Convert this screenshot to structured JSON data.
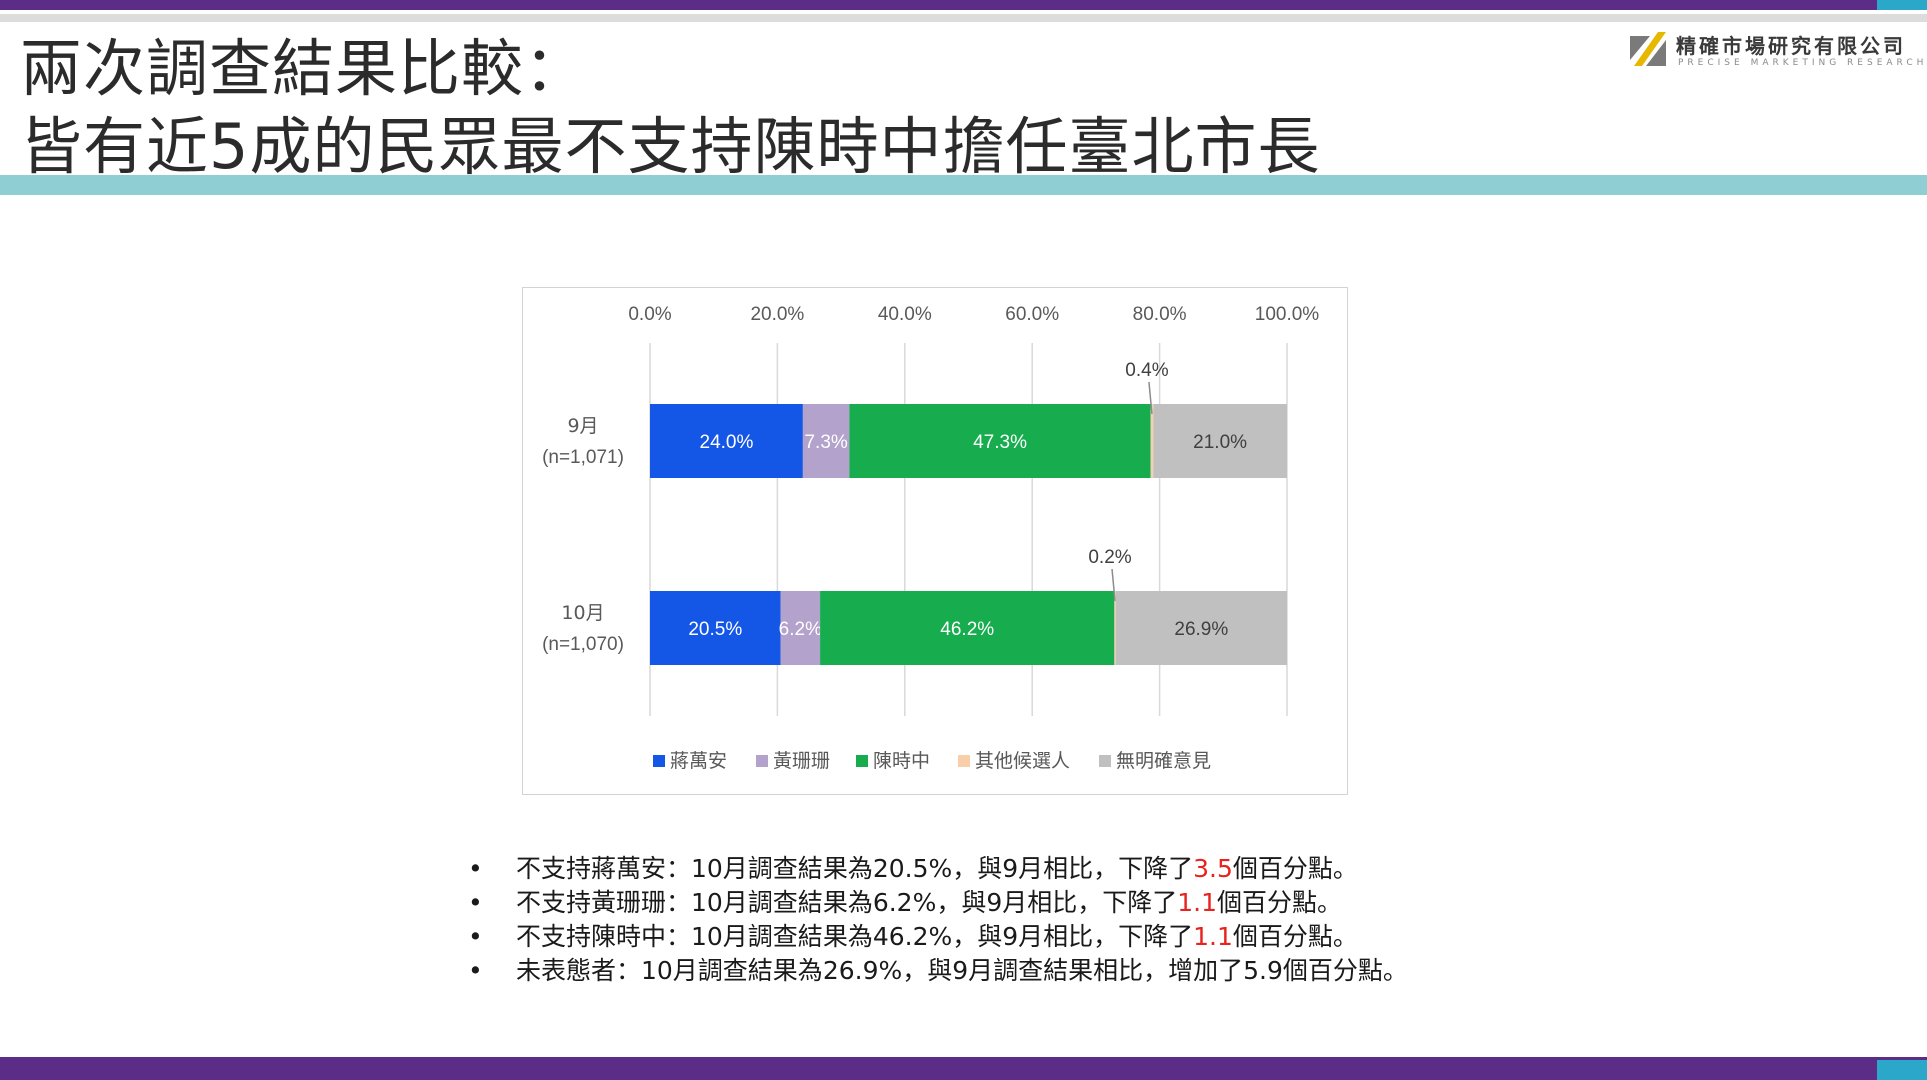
{
  "header": {
    "title_line1": "兩次調查結果比較：",
    "title_line2": "皆有近5成的民眾最不支持陳時中擔任臺北市長",
    "logo_name": "精確市場研究有限公司",
    "logo_sub": "PRECISE MARKETING RESEARCH"
  },
  "chart_data": {
    "type": "bar",
    "orientation": "horizontal",
    "stacked": true,
    "x_ticks": [
      "0.0%",
      "20.0%",
      "40.0%",
      "60.0%",
      "80.0%",
      "100.0%"
    ],
    "xlim": [
      0,
      100
    ],
    "grid": true,
    "legend_position": "bottom",
    "categories": [
      {
        "label_line1": "9月",
        "label_line2": "(n=1,071)"
      },
      {
        "label_line1": "10月",
        "label_line2": "(n=1,070)"
      }
    ],
    "series": [
      {
        "name": "蔣萬安",
        "color": "#1457e6",
        "label_color": "#ffffff",
        "values": [
          24.0,
          20.5
        ],
        "labels": [
          "24.0%",
          "20.5%"
        ]
      },
      {
        "name": "黃珊珊",
        "color": "#b3a2cc",
        "label_color": "#ffffff",
        "values": [
          7.3,
          6.2
        ],
        "labels": [
          "7.3%",
          "6.2%"
        ]
      },
      {
        "name": "陳時中",
        "color": "#17ad4f",
        "label_color": "#ffffff",
        "values": [
          47.3,
          46.2
        ],
        "labels": [
          "47.3%",
          "46.2%"
        ]
      },
      {
        "name": "其他候選人",
        "color": "#f8cfaa",
        "label_color": "#404040",
        "values": [
          0.4,
          0.2
        ],
        "labels": [
          "0.4%",
          "0.2%"
        ]
      },
      {
        "name": "無明確意見",
        "color": "#c0c0c0",
        "label_color": "#404040",
        "values": [
          21.0,
          26.9
        ],
        "labels": [
          "21.0%",
          "26.9%"
        ]
      }
    ]
  },
  "bullets": [
    {
      "prefix": "不支持蔣萬安：10月調查結果為20.5%，與9月相比，下降了",
      "highlight": "3.5",
      "suffix": "個百分點。"
    },
    {
      "prefix": "不支持黃珊珊：10月調查結果為6.2%，與9月相比，下降了",
      "highlight": "1.1",
      "suffix": "個百分點。"
    },
    {
      "prefix": "不支持陳時中：10月調查結果為46.2%，與9月相比，下降了",
      "highlight": "1.1",
      "suffix": "個百分點。"
    },
    {
      "prefix": "未表態者：10月調查結果為26.9%，與9月調查結果相比，增加了5.9個百分點。",
      "highlight": "",
      "suffix": ""
    }
  ],
  "colors": {
    "purple": "#5b2d86",
    "teal": "#8fcfd3",
    "accent": "#2aa7c9",
    "red": "#e8231e"
  }
}
